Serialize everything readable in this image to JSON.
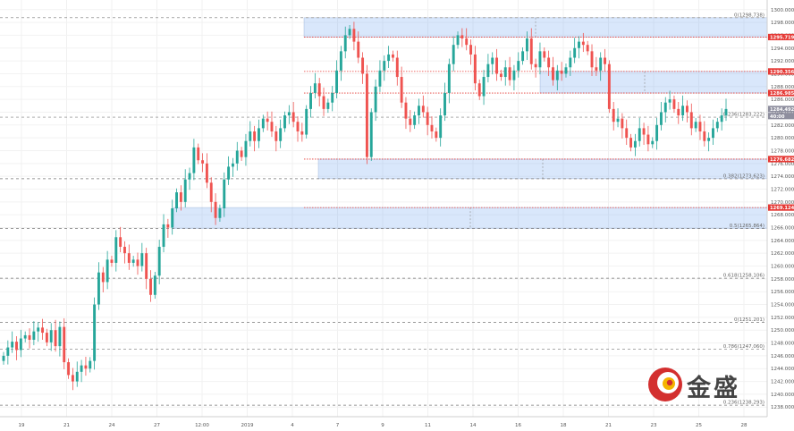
{
  "chart_data": {
    "type": "candlestick",
    "ylim": [
      1236.5,
      1301.5
    ],
    "y_ticks": [
      "1238.000",
      "1240.000",
      "1242.000",
      "1244.000",
      "1246.000",
      "1248.000",
      "1250.000",
      "1252.000",
      "1254.000",
      "1256.000",
      "1258.000",
      "1260.000",
      "1262.000",
      "1264.000",
      "1266.000",
      "1268.000",
      "1270.000",
      "1272.000",
      "1274.000",
      "1276.000",
      "1278.000",
      "1280.000",
      "1282.000",
      "1284.000",
      "1286.000",
      "1288.000",
      "1290.000",
      "1292.000",
      "1294.000",
      "1296.000",
      "1298.000",
      "1300.000"
    ],
    "x_ticks": [
      "19",
      "21",
      "24",
      "27",
      "12:00",
      "2019",
      "4",
      "7",
      "9",
      "11",
      "14",
      "16",
      "18",
      "21",
      "23",
      "25",
      "28"
    ],
    "fib_levels": [
      {
        "label": "0(1298.738)",
        "value": 1298.738
      },
      {
        "label": "0.236(1283.222)",
        "value": 1283.222
      },
      {
        "label": "0.382(1273.623)",
        "value": 1273.623
      },
      {
        "label": "0.5(1265.864)",
        "value": 1265.864
      },
      {
        "label": "0.618(1258.106)",
        "value": 1258.106
      },
      {
        "label": "0(1251.201)",
        "value": 1251.201
      },
      {
        "label": "0.786(1247.060)",
        "value": 1247.06
      },
      {
        "label": "0.236(1238.293)",
        "value": 1238.293
      }
    ],
    "price_tags": [
      {
        "label": "1295.719",
        "value": 1295.719,
        "color": "#e53935"
      },
      {
        "label": "1290.356",
        "value": 1290.356,
        "color": "#e53935"
      },
      {
        "label": "1286.985",
        "value": 1286.985,
        "color": "#e53935"
      },
      {
        "label": "1284.492",
        "value": 1284.492,
        "color": "#8e8e9e"
      },
      {
        "label": "40:00",
        "value": 1283.4,
        "color": "#8e8e9e"
      },
      {
        "label": "1276.682",
        "value": 1276.682,
        "color": "#e53935"
      },
      {
        "label": "1269.124",
        "value": 1269.124,
        "color": "#e53935"
      }
    ],
    "zones": [
      {
        "top": 1298.738,
        "bottom": 1295.719
      },
      {
        "top": 1290.356,
        "bottom": 1286.985
      },
      {
        "top": 1276.682,
        "bottom": 1273.623
      },
      {
        "top": 1269.124,
        "bottom": 1265.864
      }
    ],
    "candles_close": [
      1246.0,
      1247.3,
      1248.2,
      1246.9,
      1248.7,
      1249.2,
      1248.5,
      1249.8,
      1250.4,
      1249.6,
      1248.1,
      1250.0,
      1247.5,
      1250.5,
      1245.0,
      1243.0,
      1242.0,
      1243.5,
      1244.5,
      1244.0,
      1245.2,
      1254.0,
      1259.0,
      1257.5,
      1261.0,
      1260.5,
      1264.5,
      1263.0,
      1262.0,
      1260.5,
      1261.0,
      1260.0,
      1262.0,
      1258.0,
      1255.5,
      1258.5,
      1263.0,
      1266.5,
      1266.0,
      1269.0,
      1271.5,
      1270.0,
      1273.5,
      1274.5,
      1278.5,
      1276.5,
      1276.0,
      1273.0,
      1270.0,
      1267.5,
      1269.0,
      1273.5,
      1275.5,
      1276.0,
      1278.0,
      1277.0,
      1279.5,
      1281.0,
      1279.5,
      1281.5,
      1283.0,
      1282.5,
      1281.0,
      1279.5,
      1281.5,
      1283.5,
      1284.0,
      1282.5,
      1281.0,
      1280.5,
      1284.5,
      1287.0,
      1288.5,
      1286.5,
      1284.5,
      1285.5,
      1287.0,
      1290.5,
      1293.5,
      1296.0,
      1297.0,
      1295.0,
      1292.5,
      1290.0,
      1277.0,
      1284.0,
      1288.0,
      1290.5,
      1292.0,
      1293.0,
      1292.5,
      1289.5,
      1285.5,
      1283.0,
      1282.0,
      1283.5,
      1285.0,
      1284.0,
      1282.0,
      1281.0,
      1280.0,
      1283.5,
      1287.0,
      1291.5,
      1294.5,
      1296.0,
      1295.5,
      1294.5,
      1293.0,
      1288.5,
      1286.5,
      1289.5,
      1291.5,
      1292.5,
      1290.0,
      1289.5,
      1291.0,
      1289.0,
      1290.5,
      1292.0,
      1293.5,
      1295.5,
      1291.5,
      1291.0,
      1293.5,
      1292.5,
      1291.0,
      1289.0,
      1290.5,
      1290.0,
      1291.0,
      1292.5,
      1294.0,
      1295.0,
      1294.5,
      1293.5,
      1291.0,
      1290.5,
      1292.5,
      1291.5,
      1284.5,
      1282.5,
      1283.0,
      1281.5,
      1280.0,
      1278.5,
      1279.5,
      1281.5,
      1280.5,
      1279.0,
      1279.5,
      1282.0,
      1284.0,
      1285.5,
      1286.0,
      1284.5,
      1283.5,
      1285.0,
      1284.0,
      1281.5,
      1282.5,
      1281.0,
      1279.5,
      1280.0,
      1281.5,
      1282.5,
      1283.5,
      1284.5
    ]
  },
  "logo": {
    "text": "金盛"
  }
}
